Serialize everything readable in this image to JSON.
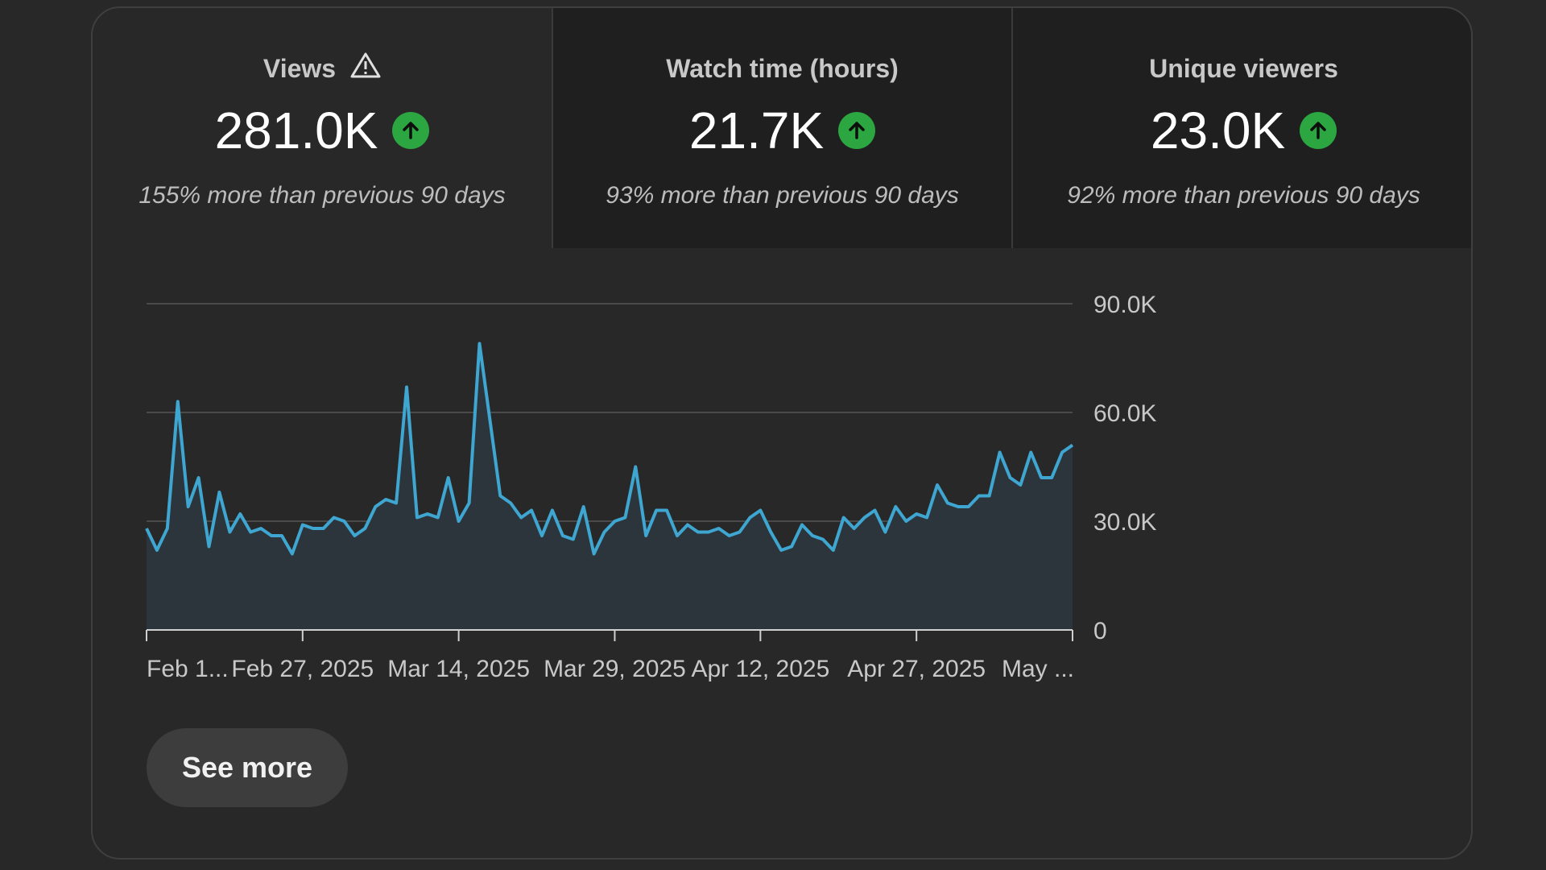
{
  "tabs": [
    {
      "title": "Views",
      "value": "281.0K",
      "subtitle": "155% more than previous 90 days",
      "warning_icon": "warning-triangle-icon",
      "trend_icon": "arrow-up-icon"
    },
    {
      "title": "Watch time (hours)",
      "value": "21.7K",
      "subtitle": "93% more than previous 90 days",
      "trend_icon": "arrow-up-icon"
    },
    {
      "title": "Unique viewers",
      "value": "23.0K",
      "subtitle": "92% more than previous 90 days",
      "trend_icon": "arrow-up-icon"
    }
  ],
  "colors": {
    "line": "#3ea6d0",
    "fill": "#2b353b",
    "positive": "#2ba640",
    "grid": "#4a4a4a",
    "axis": "#c8c8c8"
  },
  "see_more_label": "See more",
  "chart_data": {
    "type": "area",
    "title": "",
    "xlabel": "",
    "ylabel": "",
    "ylim": [
      0,
      90000
    ],
    "y_ticks": [
      0,
      30000,
      60000,
      90000
    ],
    "y_tick_labels": [
      "0",
      "30.0K",
      "60.0K",
      "90.0K"
    ],
    "y_axis_position": "right",
    "x_tick_labels": [
      "Feb 1...",
      "Feb 27, 2025",
      "Mar 14, 2025",
      "Mar 29, 2025",
      "Apr 12, 2025",
      "Apr 27, 2025",
      "May ..."
    ],
    "x_tick_dates": [
      "2025-02-12",
      "2025-02-27",
      "2025-03-14",
      "2025-03-29",
      "2025-04-12",
      "2025-04-27",
      "2025-05-12"
    ],
    "x_start": "2025-02-12",
    "grid": true,
    "series": [
      {
        "values": [
          28000,
          22000,
          28000,
          63000,
          34000,
          42000,
          23000,
          38000,
          27000,
          32000,
          27000,
          28000,
          26000,
          26000,
          21000,
          29000,
          28000,
          28000,
          31000,
          30000,
          26000,
          28000,
          34000,
          36000,
          35000,
          67000,
          31000,
          32000,
          31000,
          42000,
          30000,
          35000,
          79000,
          58000,
          37000,
          35000,
          31000,
          33000,
          26000,
          33000,
          26000,
          25000,
          34000,
          21000,
          27000,
          30000,
          31000,
          45000,
          26000,
          33000,
          33000,
          26000,
          29000,
          27000,
          27000,
          28000,
          26000,
          27000,
          31000,
          33000,
          27000,
          22000,
          23000,
          29000,
          26000,
          25000,
          22000,
          31000,
          28000,
          31000,
          33000,
          27000,
          34000,
          30000,
          32000,
          31000,
          40000,
          35000,
          34000,
          34000,
          37000,
          37000,
          49000,
          42000,
          40000,
          49000,
          42000,
          42000,
          49000,
          51000
        ]
      }
    ]
  }
}
